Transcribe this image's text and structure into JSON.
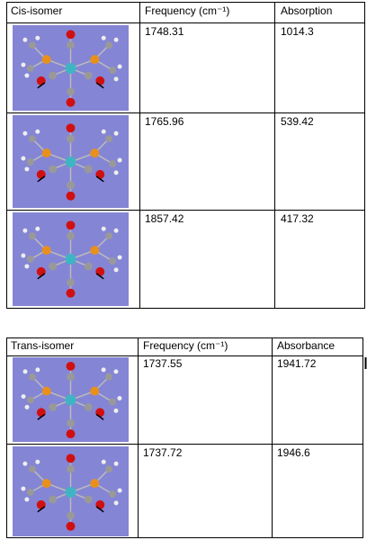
{
  "table1": {
    "header": [
      "Cis-isomer",
      "Frequency (cm⁻¹)",
      "Absorption"
    ],
    "rows": [
      [
        "1748.31",
        "1014.3"
      ],
      [
        "1765.96",
        "539.42"
      ],
      [
        "1857.42",
        "417.32"
      ]
    ]
  },
  "table2": {
    "header": [
      "Trans-isomer",
      "Frequency (cm⁻¹)",
      "Absorbance"
    ],
    "rows": [
      [
        "1737.55",
        "1941.72"
      ],
      [
        "1737.72",
        "1946.6"
      ]
    ]
  }
}
